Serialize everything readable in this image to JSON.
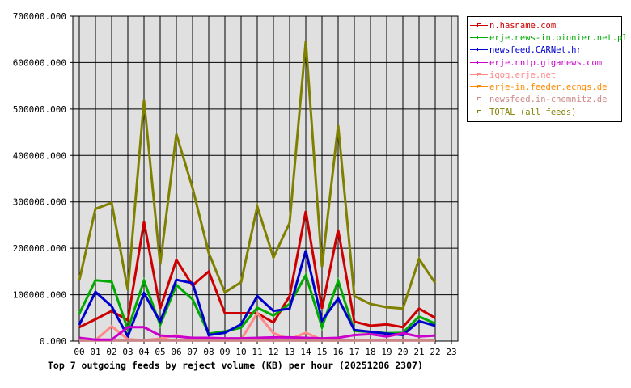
{
  "chart_data": {
    "type": "line",
    "title": "Top 7 outgoing feeds by reject volume (KB) per hour (20251206 2307)",
    "xlabel": "",
    "ylabel": "",
    "ylim": [
      0,
      700000
    ],
    "yticks": [
      "0.000",
      "100000.000",
      "200000.000",
      "300000.000",
      "400000.000",
      "500000.000",
      "600000.000",
      "700000.000"
    ],
    "categories": [
      "00",
      "01",
      "02",
      "03",
      "04",
      "05",
      "06",
      "07",
      "08",
      "09",
      "10",
      "11",
      "12",
      "13",
      "14",
      "15",
      "16",
      "17",
      "18",
      "19",
      "20",
      "21",
      "22",
      "23"
    ],
    "grid": true,
    "legend_position": "right-top",
    "series": [
      {
        "name": "n.hasname.com",
        "color": "#cc0000",
        "values": [
          30000,
          47000,
          65000,
          45000,
          257000,
          70000,
          175000,
          120000,
          150000,
          60000,
          60000,
          60000,
          40000,
          97000,
          280000,
          70000,
          240000,
          42000,
          33000,
          36000,
          30000,
          70000,
          50000
        ]
      },
      {
        "name": "erje.news-in.pionier.net.pl",
        "color": "#00aa00",
        "values": [
          59000,
          131000,
          128000,
          25000,
          130000,
          35000,
          121000,
          90000,
          16000,
          21000,
          29000,
          72000,
          55000,
          80000,
          142000,
          30000,
          130000,
          22000,
          20000,
          17000,
          18000,
          53000,
          38000
        ]
      },
      {
        "name": "newsfeed.CARNet.hr",
        "color": "#0000cc",
        "values": [
          35000,
          106000,
          75000,
          10000,
          103000,
          42000,
          132000,
          125000,
          13000,
          18000,
          36000,
          97000,
          65000,
          70000,
          195000,
          44000,
          92000,
          24000,
          20000,
          16000,
          13000,
          43000,
          33000
        ]
      },
      {
        "name": "erje.nntp.giganews.com",
        "color": "#cc00cc",
        "values": [
          7000,
          3000,
          3000,
          30000,
          30000,
          12000,
          10000,
          7000,
          7000,
          6000,
          6000,
          7000,
          8000,
          8000,
          7000,
          6000,
          7000,
          13000,
          15000,
          10000,
          17000,
          10000,
          12000
        ]
      },
      {
        "name": "iqoq.erje.net",
        "color": "#ff8888",
        "values": [
          1000,
          2000,
          32000,
          4000,
          2000,
          5000,
          13000,
          3000,
          2000,
          2000,
          3000,
          60000,
          17000,
          4000,
          18000,
          3000,
          2000,
          2000,
          2000,
          2000,
          2000,
          3000,
          2000
        ]
      },
      {
        "name": "erje-in.feeder.ecngs.de",
        "color": "#ff8800",
        "values": [
          2000,
          2000,
          2000,
          2000,
          2000,
          2000,
          2000,
          2000,
          2000,
          2000,
          2000,
          2000,
          2000,
          2000,
          2000,
          2000,
          2000,
          2000,
          2000,
          2000,
          2000,
          2000,
          2000
        ]
      },
      {
        "name": "newsfeed.in-chemnitz.de",
        "color": "#cc8888",
        "values": [
          1000,
          1000,
          1000,
          1000,
          1000,
          1000,
          1000,
          1000,
          1000,
          1000,
          1000,
          1000,
          1000,
          1000,
          1000,
          1000,
          1000,
          1000,
          1000,
          1000,
          1000,
          1000,
          1000
        ]
      },
      {
        "name": "TOTAL (all feeds)",
        "color": "#808000",
        "values": [
          131000,
          285000,
          298000,
          110000,
          519000,
          165000,
          446000,
          330000,
          190000,
          105000,
          127000,
          290000,
          180000,
          255000,
          646000,
          160000,
          465000,
          97000,
          80000,
          73000,
          70000,
          177000,
          125000
        ]
      }
    ]
  }
}
